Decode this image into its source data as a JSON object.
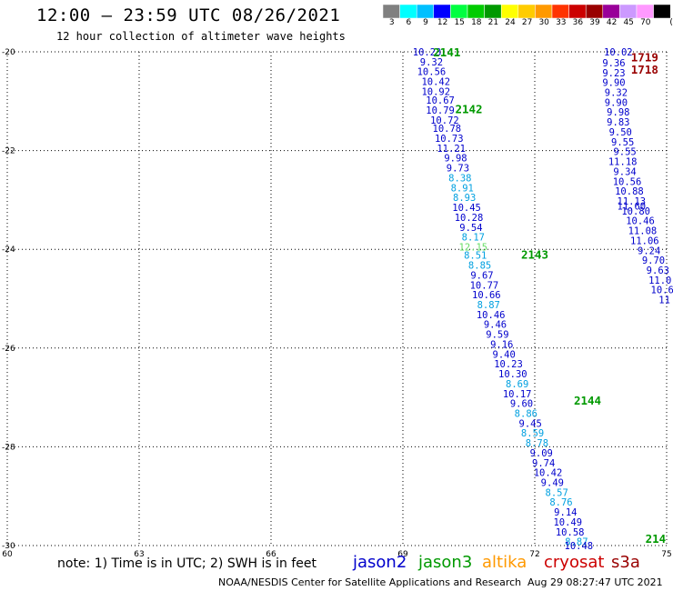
{
  "title": "12:00 – 23:59 UTC 08/26/2021",
  "subtitle": "12 hour collection of altimeter wave heights",
  "legend": {
    "unit": "(ft)",
    "swatches": [
      {
        "label": "3",
        "color": "#808080"
      },
      {
        "label": "6",
        "color": "#00ffff"
      },
      {
        "label": "9",
        "color": "#00c0ff"
      },
      {
        "label": "12",
        "color": "#0000ff"
      },
      {
        "label": "15",
        "color": "#00ff40"
      },
      {
        "label": "18",
        "color": "#00cc00"
      },
      {
        "label": "21",
        "color": "#009900"
      },
      {
        "label": "24",
        "color": "#ffff00"
      },
      {
        "label": "27",
        "color": "#ffcc00"
      },
      {
        "label": "30",
        "color": "#ff9900"
      },
      {
        "label": "33",
        "color": "#ff3300"
      },
      {
        "label": "36",
        "color": "#cc0000"
      },
      {
        "label": "39",
        "color": "#990000"
      },
      {
        "label": "42",
        "color": "#990099"
      },
      {
        "label": "45",
        "color": "#cc99ff"
      },
      {
        "label": "70",
        "color": "#ff99ff"
      },
      {
        "label": "",
        "color": "#000000"
      }
    ]
  },
  "footer": {
    "note": "note:  1) Time is in UTC;  2) SWH is in feet",
    "satellites": [
      {
        "name": "jason2",
        "color": "#0000cc"
      },
      {
        "name": "jason3",
        "color": "#009900"
      },
      {
        "name": "altika",
        "color": "#ff9900"
      },
      {
        "name": "cryosat",
        "color": "#cc0000"
      },
      {
        "name": "s3a",
        "color": "#990000"
      }
    ],
    "credit": "NOAA/NESDIS Center for Satellite Applications and Research",
    "timestamp": "Aug 29 08:27:47 UTC 2021"
  },
  "chart_data": {
    "type": "scatter",
    "xlim": [
      60,
      75
    ],
    "ylim": [
      -30,
      -20
    ],
    "xticks": [
      "60",
      "63",
      "66",
      "69",
      "72",
      "75"
    ],
    "yticks": [
      "-20",
      "-22",
      "-24",
      "-26",
      "-28",
      "-30"
    ],
    "grid": true,
    "pass_labels": [
      {
        "text": "2141",
        "x": 70.0,
        "y": -20.0,
        "color": "#009900"
      },
      {
        "text": "2142",
        "x": 70.5,
        "y": -21.15,
        "color": "#009900"
      },
      {
        "text": "2143",
        "x": 72.0,
        "y": -24.1,
        "color": "#009900"
      },
      {
        "text": "2144",
        "x": 73.2,
        "y": -27.05,
        "color": "#009900"
      },
      {
        "text": "214",
        "x": 74.75,
        "y": -29.85,
        "color": "#009900"
      },
      {
        "text": "1719",
        "x": 74.5,
        "y": -20.1,
        "color": "#990000"
      },
      {
        "text": "1718",
        "x": 74.5,
        "y": -20.35,
        "color": "#990000"
      }
    ],
    "series": [
      {
        "name": "jason3",
        "points": [
          [
            69.55,
            -20.0,
            "10.23",
            "#0000cc"
          ],
          [
            69.65,
            -20.2,
            "9.32",
            "#0000cc"
          ],
          [
            69.65,
            -20.4,
            "10.56",
            "#0000cc"
          ],
          [
            69.75,
            -20.6,
            "10.42",
            "#0000cc"
          ],
          [
            69.75,
            -20.8,
            "10.92",
            "#0000cc"
          ],
          [
            69.85,
            -20.98,
            "10.67",
            "#0000cc"
          ],
          [
            69.85,
            -21.18,
            "10.79",
            "#0000cc"
          ],
          [
            69.95,
            -21.38,
            "10.72",
            "#0000cc"
          ],
          [
            70.0,
            -21.55,
            "10.78",
            "#0000cc"
          ],
          [
            70.05,
            -21.75,
            "10.73",
            "#0000cc"
          ],
          [
            70.1,
            -21.95,
            "11.21",
            "#0000cc"
          ],
          [
            70.2,
            -22.15,
            "9.98",
            "#0000cc"
          ],
          [
            70.25,
            -22.35,
            "9.73",
            "#0000cc"
          ],
          [
            70.3,
            -22.55,
            "8.38",
            "#00a0e0"
          ],
          [
            70.35,
            -22.75,
            "8.91",
            "#00a0e0"
          ],
          [
            70.4,
            -22.95,
            "8.93",
            "#00a0e0"
          ],
          [
            70.45,
            -23.15,
            "10.45",
            "#0000cc"
          ],
          [
            70.5,
            -23.35,
            "10.28",
            "#0000cc"
          ],
          [
            70.55,
            -23.55,
            "9.54",
            "#0000cc"
          ],
          [
            70.6,
            -23.75,
            "8.17",
            "#00a0e0"
          ],
          [
            70.6,
            -23.95,
            "12.15",
            "#66dd66"
          ],
          [
            70.65,
            -24.12,
            "8.51",
            "#00a0e0"
          ],
          [
            70.75,
            -24.32,
            "8.85",
            "#00a0e0"
          ],
          [
            70.8,
            -24.52,
            "9.67",
            "#0000cc"
          ],
          [
            70.85,
            -24.72,
            "10.77",
            "#0000cc"
          ],
          [
            70.9,
            -24.92,
            "10.66",
            "#0000cc"
          ],
          [
            70.95,
            -25.12,
            "8.87",
            "#00a0e0"
          ],
          [
            71.0,
            -25.32,
            "10.46",
            "#0000cc"
          ],
          [
            71.1,
            -25.52,
            "9.46",
            "#0000cc"
          ],
          [
            71.15,
            -25.72,
            "9.59",
            "#0000cc"
          ],
          [
            71.25,
            -25.92,
            "9.16",
            "#0000cc"
          ],
          [
            71.3,
            -26.12,
            "9.40",
            "#0000cc"
          ],
          [
            71.4,
            -26.32,
            "10.23",
            "#0000cc"
          ],
          [
            71.5,
            -26.52,
            "10.30",
            "#0000cc"
          ],
          [
            71.6,
            -26.72,
            "8.69",
            "#00a0e0"
          ],
          [
            71.6,
            -26.92,
            "10.17",
            "#0000cc"
          ],
          [
            71.7,
            -27.12,
            "9.60",
            "#0000cc"
          ],
          [
            71.8,
            -27.32,
            "8.86",
            "#00a0e0"
          ],
          [
            71.9,
            -27.52,
            "9.45",
            "#0000cc"
          ],
          [
            71.95,
            -27.72,
            "8.59",
            "#00a0e0"
          ],
          [
            72.05,
            -27.92,
            "8.78",
            "#00a0e0"
          ],
          [
            72.15,
            -28.12,
            "9.09",
            "#0000cc"
          ],
          [
            72.2,
            -28.32,
            "9.74",
            "#0000cc"
          ],
          [
            72.3,
            -28.52,
            "10.42",
            "#0000cc"
          ],
          [
            72.4,
            -28.72,
            "9.49",
            "#0000cc"
          ],
          [
            72.5,
            -28.92,
            "8.57",
            "#00a0e0"
          ],
          [
            72.6,
            -29.12,
            "8.76",
            "#00a0e0"
          ],
          [
            72.7,
            -29.32,
            "9.14",
            "#0000cc"
          ],
          [
            72.75,
            -29.52,
            "10.49",
            "#0000cc"
          ],
          [
            72.8,
            -29.72,
            "10.58",
            "#0000cc"
          ],
          [
            72.95,
            -29.92,
            "8.87",
            "#00a0e0"
          ],
          [
            73.0,
            -30.0,
            "10.48",
            "#0000cc"
          ]
        ]
      },
      {
        "name": "s3a",
        "points": [
          [
            73.9,
            -20.0,
            "10.02",
            "#0000cc"
          ],
          [
            73.8,
            -20.22,
            "9.36",
            "#0000cc"
          ],
          [
            73.8,
            -20.42,
            "9.23",
            "#0000cc"
          ],
          [
            73.8,
            -20.62,
            "9.90",
            "#0000cc"
          ],
          [
            73.85,
            -20.82,
            "9.32",
            "#0000cc"
          ],
          [
            73.85,
            -21.02,
            "9.90",
            "#0000cc"
          ],
          [
            73.9,
            -21.22,
            "9.98",
            "#0000cc"
          ],
          [
            73.9,
            -21.42,
            "9.83",
            "#0000cc"
          ],
          [
            73.95,
            -21.62,
            "9.50",
            "#0000cc"
          ],
          [
            74.0,
            -21.82,
            "9.55",
            "#0000cc"
          ],
          [
            74.05,
            -22.02,
            "9.55",
            "#0000cc"
          ],
          [
            74.0,
            -22.22,
            "11.18",
            "#0000cc"
          ],
          [
            74.05,
            -22.42,
            "9.34",
            "#0000cc"
          ],
          [
            74.1,
            -22.62,
            "10.56",
            "#0000cc"
          ],
          [
            74.15,
            -22.82,
            "10.88",
            "#0000cc"
          ],
          [
            74.2,
            -23.02,
            "11.13",
            "#0000cc"
          ],
          [
            74.2,
            -23.12,
            "11.60",
            "#0000cc"
          ],
          [
            74.3,
            -23.22,
            "10.80",
            "#0000cc"
          ],
          [
            74.4,
            -23.42,
            "10.46",
            "#0000cc"
          ],
          [
            74.45,
            -23.62,
            "11.08",
            "#0000cc"
          ],
          [
            74.5,
            -23.82,
            "11.06",
            "#0000cc"
          ],
          [
            74.6,
            -24.02,
            "9.24",
            "#0000cc"
          ],
          [
            74.7,
            -24.22,
            "9.70",
            "#0000cc"
          ],
          [
            74.8,
            -24.42,
            "9.63",
            "#0000cc"
          ],
          [
            74.85,
            -24.62,
            "11.0",
            "#0000cc"
          ],
          [
            74.9,
            -24.82,
            "10.6",
            "#0000cc"
          ],
          [
            74.95,
            -25.02,
            "11",
            "#0000cc"
          ]
        ]
      }
    ]
  }
}
